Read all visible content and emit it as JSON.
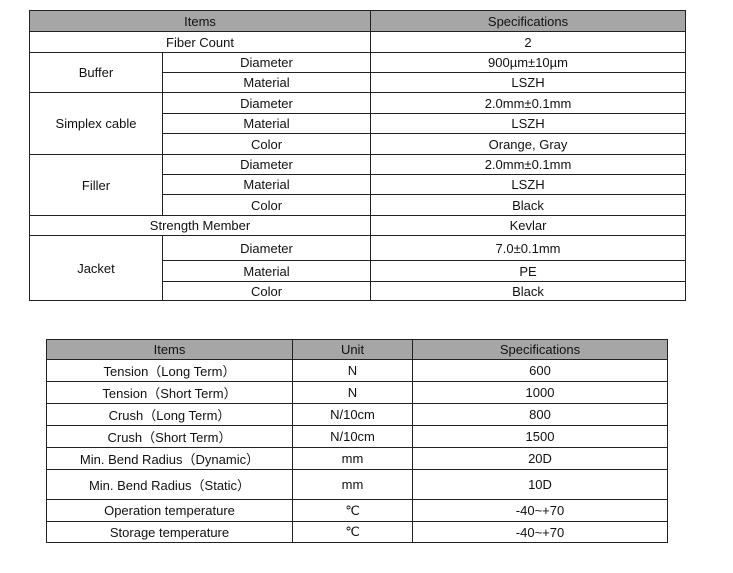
{
  "table1": {
    "headers": [
      "Items",
      "Specifications"
    ],
    "fiber_count": {
      "label": "Fiber Count",
      "value": "2"
    },
    "buffer": {
      "label": "Buffer",
      "rows": [
        [
          "Diameter",
          "900µm±10µm"
        ],
        [
          "Material",
          "LSZH"
        ]
      ]
    },
    "simplex": {
      "label": "Simplex cable",
      "rows": [
        [
          "Diameter",
          "2.0mm±0.1mm"
        ],
        [
          "Material",
          "LSZH"
        ],
        [
          "Color",
          "Orange, Gray"
        ]
      ]
    },
    "filler": {
      "label": "Filler",
      "rows": [
        [
          "Diameter",
          "2.0mm±0.1mm"
        ],
        [
          "Material",
          "LSZH"
        ],
        [
          "Color",
          "Black"
        ]
      ]
    },
    "strength": {
      "label": "Strength Member",
      "value": "Kevlar"
    },
    "jacket": {
      "label": "Jacket",
      "rows": [
        [
          "Diameter",
          "7.0±0.1mm"
        ],
        [
          "Material",
          "PE"
        ],
        [
          "Color",
          "Black"
        ]
      ]
    }
  },
  "table2": {
    "headers": [
      "Items",
      "Unit",
      "Specifications"
    ],
    "rows": [
      [
        "Tension（Long Term）",
        "N",
        "600"
      ],
      [
        "Tension（Short Term）",
        "N",
        "1000"
      ],
      [
        "Crush（Long Term）",
        "N/10cm",
        "800"
      ],
      [
        "Crush（Short Term）",
        "N/10cm",
        "1500"
      ],
      [
        "Min. Bend Radius（Dynamic）",
        "mm",
        "20D"
      ],
      [
        "Min. Bend Radius（Static）",
        "mm",
        "10D"
      ],
      [
        "Operation temperature",
        "℃",
        "-40~+70"
      ],
      [
        "Storage temperature",
        "℃",
        "-40~+70"
      ]
    ]
  }
}
